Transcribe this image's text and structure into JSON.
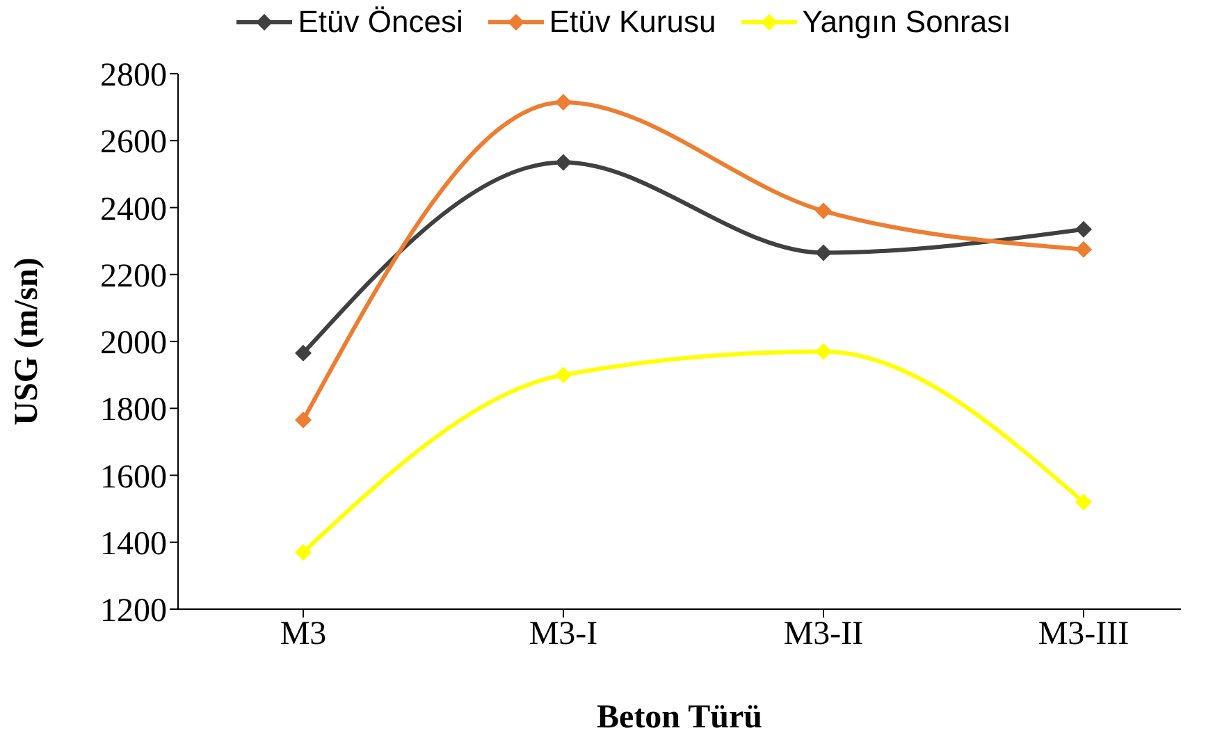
{
  "chart_data": {
    "type": "line",
    "xlabel": "Beton Türü",
    "ylabel": "USG (m/sn)",
    "categories": [
      "M3",
      "M3-I",
      "M3-II",
      "M3-III"
    ],
    "series": [
      {
        "name": "Etüv Öncesi",
        "color": "#404040",
        "values": [
          1965,
          2535,
          2265,
          2335
        ]
      },
      {
        "name": "Etüv Kurusu",
        "color": "#ed7d31",
        "values": [
          1765,
          2715,
          2390,
          2275
        ]
      },
      {
        "name": "Yangın Sonrası",
        "color": "#ffff00",
        "values": [
          1370,
          1900,
          1970,
          1520
        ]
      }
    ],
    "ylim": [
      1200,
      2800
    ],
    "yticks": [
      1200,
      1400,
      1600,
      1800,
      2000,
      2200,
      2400,
      2600,
      2800
    ],
    "grid": false,
    "legend": "top",
    "marker": "diamond",
    "line_style": "solid"
  }
}
